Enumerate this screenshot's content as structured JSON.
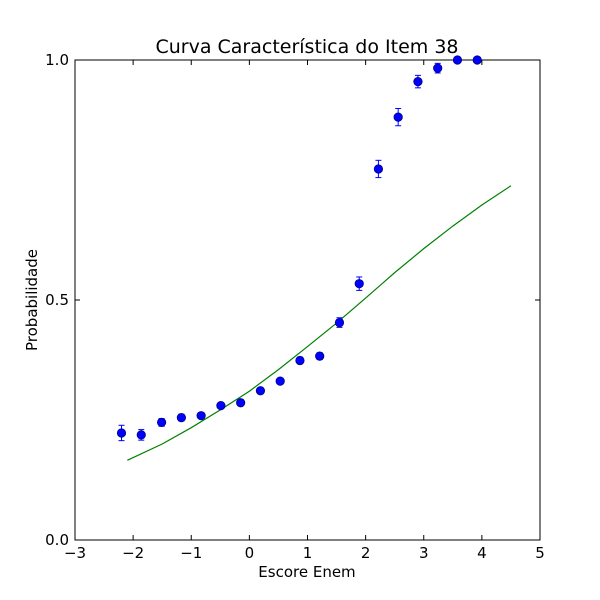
{
  "chart_data": {
    "type": "scatter",
    "title": "Curva Característica do Item 38",
    "xlabel": "Escore Enem",
    "ylabel": "Probabilidade",
    "xlim": [
      -3,
      5
    ],
    "ylim": [
      0,
      1
    ],
    "x_ticks": [
      -3,
      -2,
      -1,
      0,
      1,
      2,
      3,
      4,
      5
    ],
    "x_tick_labels": [
      "−3",
      "−2",
      "−1",
      "0",
      "1",
      "2",
      "3",
      "4",
      "5"
    ],
    "y_ticks": [
      0,
      0.5,
      1
    ],
    "y_tick_labels": [
      "0.0",
      "0.5",
      "1.0"
    ],
    "grid": false,
    "colors": {
      "points": "#0000ff",
      "points_edge": "#000080",
      "curve": "#008000",
      "axes": "#000000"
    },
    "series": [
      {
        "type": "scatter_errorbar",
        "points": [
          {
            "x": -2.2,
            "y": 0.223,
            "err": 0.016
          },
          {
            "x": -1.86,
            "y": 0.219,
            "err": 0.011
          },
          {
            "x": -1.51,
            "y": 0.245,
            "err": 0.008
          },
          {
            "x": -1.17,
            "y": 0.255,
            "err": 0.007
          },
          {
            "x": -0.83,
            "y": 0.259,
            "err": 0.006
          },
          {
            "x": -0.49,
            "y": 0.28,
            "err": 0.006
          },
          {
            "x": -0.15,
            "y": 0.286,
            "err": 0.006
          },
          {
            "x": 0.19,
            "y": 0.311,
            "err": 0.006
          },
          {
            "x": 0.53,
            "y": 0.331,
            "err": 0.006
          },
          {
            "x": 0.87,
            "y": 0.374,
            "err": 0.007
          },
          {
            "x": 1.21,
            "y": 0.383,
            "err": 0.007
          },
          {
            "x": 1.55,
            "y": 0.453,
            "err": 0.01
          },
          {
            "x": 1.89,
            "y": 0.534,
            "err": 0.014
          },
          {
            "x": 2.22,
            "y": 0.773,
            "err": 0.018
          },
          {
            "x": 2.56,
            "y": 0.881,
            "err": 0.018
          },
          {
            "x": 2.9,
            "y": 0.955,
            "err": 0.013
          },
          {
            "x": 3.24,
            "y": 0.983,
            "err": 0.01
          },
          {
            "x": 3.58,
            "y": 1.0,
            "err": 0.006
          },
          {
            "x": 3.92,
            "y": 1.0,
            "err": 0.004
          }
        ]
      },
      {
        "type": "line",
        "x": [
          -2.1,
          -1.5,
          -1.0,
          -0.5,
          0.0,
          0.5,
          1.0,
          1.5,
          2.0,
          2.5,
          3.0,
          3.5,
          4.0,
          4.5
        ],
        "y": [
          0.166,
          0.2,
          0.234,
          0.271,
          0.31,
          0.355,
          0.403,
          0.452,
          0.504,
          0.557,
          0.607,
          0.654,
          0.698,
          0.738
        ]
      }
    ]
  }
}
